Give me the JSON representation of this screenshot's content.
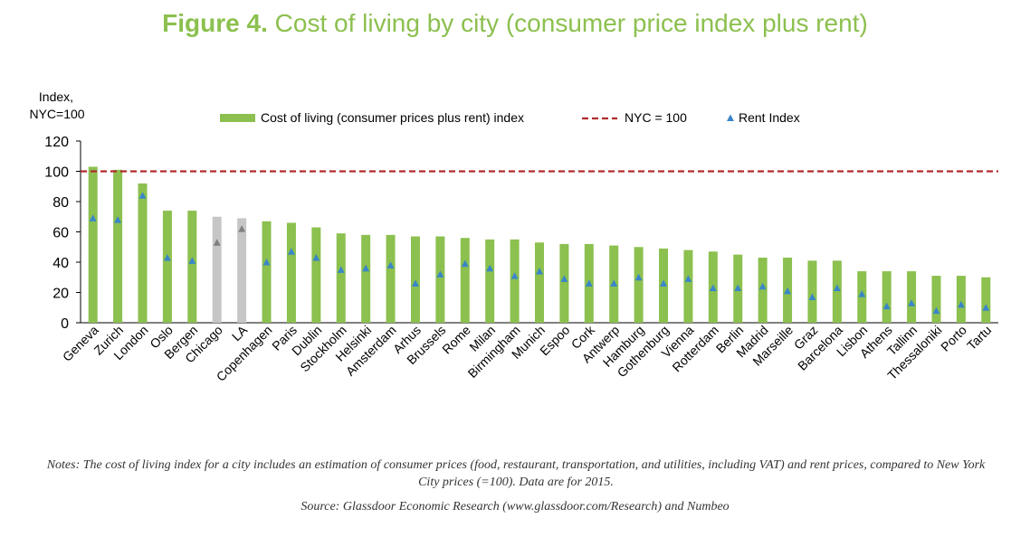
{
  "title": {
    "label": "Figure 4.",
    "text": "Cost of living by city (consumer price index plus rent)"
  },
  "colors": {
    "title": "#8cc04f",
    "bar": "#8cc04f",
    "bar_us": "#c6c6c6",
    "rent_marker": "#3a86c8",
    "rent_marker_us": "#7f7f7f",
    "nyc_line": "#b22a2e"
  },
  "chart_data": {
    "type": "bar",
    "title": "Cost of living by city (consumer price index plus rent)",
    "ylabel_lines": [
      "Index,",
      "NYC=100"
    ],
    "xlabel": "",
    "ylim": [
      0,
      120
    ],
    "yticks": [
      "0",
      "20",
      "40",
      "60",
      "80",
      "100",
      "120"
    ],
    "grid": false,
    "legend_position": "top",
    "legend": {
      "bar": "Cost of living (consumer prices plus rent) index",
      "line": "NYC = 100",
      "marker": "Rent Index"
    },
    "reference_line": {
      "name": "NYC = 100",
      "value": 100
    },
    "highlight_categories": [
      "Chicago",
      "LA"
    ],
    "categories": [
      "Geneva",
      "Zurich",
      "London",
      "Oslo",
      "Bergen",
      "Chicago",
      "LA",
      "Copenhagen",
      "Paris",
      "Dublin",
      "Stockholm",
      "Helsinki",
      "Amsterdam",
      "Arhus",
      "Brussels",
      "Rome",
      "Milan",
      "Birmingham",
      "Munich",
      "Espoo",
      "Cork",
      "Antwerp",
      "Hamburg",
      "Gothenburg",
      "Vienna",
      "Rotterdam",
      "Berlin",
      "Madrid",
      "Marseille",
      "Graz",
      "Barcelona",
      "Lisbon",
      "Athens",
      "Tallinn",
      "Thessaloniki",
      "Porto",
      "Tartu"
    ],
    "series": [
      {
        "name": "Cost of living (consumer prices plus rent) index",
        "type": "bar",
        "values": [
          103,
          101,
          92,
          74,
          74,
          70,
          69,
          67,
          66,
          63,
          59,
          58,
          58,
          57,
          57,
          56,
          55,
          55,
          53,
          52,
          52,
          51,
          50,
          49,
          48,
          47,
          45,
          43,
          43,
          41,
          41,
          34,
          34,
          34,
          31,
          31,
          30
        ]
      },
      {
        "name": "Rent Index",
        "type": "marker",
        "values": [
          69,
          68,
          84,
          43,
          41,
          53,
          62,
          40,
          47,
          43,
          35,
          36,
          38,
          26,
          32,
          39,
          36,
          31,
          34,
          29,
          26,
          26,
          30,
          26,
          29,
          23,
          23,
          24,
          21,
          17,
          23,
          19,
          11,
          13,
          8,
          12,
          10
        ]
      }
    ]
  },
  "notes": "Notes: The cost of living index for a city includes an estimation of consumer prices (food, restaurant, transportation, and utilities, including VAT) and rent prices, compared to New York City prices (=100). Data are for 2015.",
  "source": "Source: Glassdoor Economic Research (www.glassdoor.com/Research) and Numbeo"
}
